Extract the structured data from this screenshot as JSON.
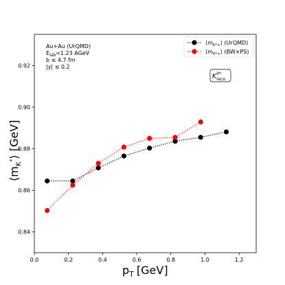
{
  "chart_data": {
    "type": "line",
    "xlabel_main": "p",
    "xlabel_sub": "T",
    "xlabel_unit": "[GeV]",
    "ylabel_left": "⟨m",
    "ylabel_sub": "K",
    "ylabel_sup": "*",
    "ylabel_right": "⟩ [GeV]",
    "xlim": [
      0.0,
      1.3
    ],
    "ylim": [
      0.83,
      0.935
    ],
    "x_ticks": [
      0.0,
      0.2,
      0.4,
      0.6,
      0.8,
      1.0,
      1.2
    ],
    "x_tick_labels": [
      "0.0",
      "0.2",
      "0.4",
      "0.6",
      "0.8",
      "1.0",
      "1.2"
    ],
    "y_ticks": [
      0.84,
      0.86,
      0.88,
      0.9,
      0.92
    ],
    "y_tick_labels": [
      "0.84",
      "0.86",
      "0.88",
      "0.90",
      "0.92"
    ],
    "info_lines": [
      {
        "main": "Au+Au (UrQMD)",
        "sub": ""
      },
      {
        "main": "E",
        "sub": "lab",
        "rest": "=1.23 AGeV"
      },
      {
        "main": "b ≤ 4.7 fm",
        "sub": ""
      },
      {
        "main": "|y| ≤ 0.2",
        "sub": ""
      }
    ],
    "box_label": {
      "main": "K",
      "sup": "0*",
      "sub": "reco"
    },
    "legend_position": "top-right",
    "series": [
      {
        "name": "⟨m_{K*+}⟩ (UrQMD)",
        "legend_prefix": "⟨m",
        "legend_sub": "K*+",
        "legend_suffix": "⟩ (UrQMD)",
        "color": "#000000",
        "x": [
          0.075,
          0.225,
          0.375,
          0.525,
          0.675,
          0.825,
          0.975,
          1.125
        ],
        "y": [
          0.8645,
          0.8645,
          0.8708,
          0.8765,
          0.8803,
          0.8836,
          0.8855,
          0.8881
        ]
      },
      {
        "name": "⟨m_{K*+}⟩ (BW×PS)",
        "legend_prefix": "⟨m",
        "legend_sub": "K*+",
        "legend_suffix": "⟩ (BW×PS)",
        "color": "#ff0000",
        "x": [
          0.075,
          0.225,
          0.375,
          0.525,
          0.675,
          0.825,
          0.975
        ],
        "y": [
          0.8503,
          0.8625,
          0.873,
          0.8808,
          0.885,
          0.8855,
          0.8929
        ]
      }
    ]
  }
}
